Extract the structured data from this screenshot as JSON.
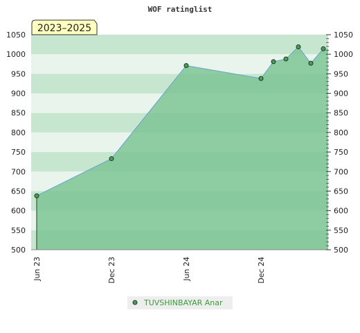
{
  "chart_data": {
    "type": "area",
    "title": "WOF ratinglist",
    "badge": "2023–2025",
    "xlabel": "",
    "ylabel": "",
    "x_ticks": [
      "Jun 23",
      "Dec 23",
      "Jun 24",
      "Dec 24"
    ],
    "ylim": [
      500,
      1050
    ],
    "y_ticks": [
      500,
      550,
      600,
      650,
      700,
      750,
      800,
      850,
      900,
      950,
      1000,
      1050
    ],
    "legend_position": "bottom-center",
    "series": [
      {
        "name": "TUVSHINBAYAR Anar",
        "points": [
          {
            "x": "2023-06",
            "y": 638
          },
          {
            "x": "2023-12",
            "y": 733
          },
          {
            "x": "2024-06",
            "y": 971
          },
          {
            "x": "2024-12",
            "y": 938
          },
          {
            "x": "2025-01",
            "y": 981
          },
          {
            "x": "2025-02",
            "y": 988
          },
          {
            "x": "2025-03",
            "y": 1019
          },
          {
            "x": "2025-04",
            "y": 977
          },
          {
            "x": "2025-05",
            "y": 1014
          }
        ]
      }
    ],
    "colors": {
      "area_fill": "#7ac391",
      "line": "#6a9fd0",
      "marker_fill": "#4c9a5a",
      "marker_stroke": "#1f3d22",
      "band_light": "#e8f4ec",
      "band_dark": "#c6e6cf",
      "badge_fill": "#ffffc0"
    }
  }
}
